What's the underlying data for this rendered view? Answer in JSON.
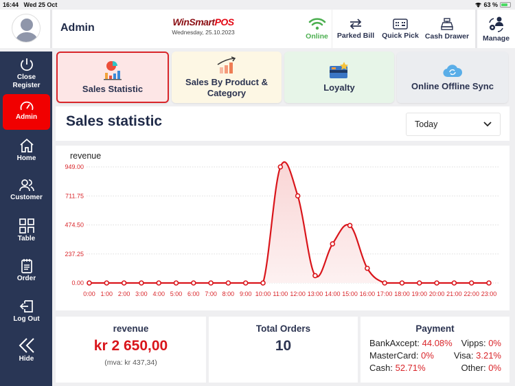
{
  "status_bar": {
    "time": "16:44",
    "date": "Wed 25 Oct",
    "battery": "63 %"
  },
  "header": {
    "user_name": "Admin",
    "logo": {
      "part1": "WinSmart",
      "part2": "POS"
    },
    "date": "Wednesday, 25.10.2023",
    "buttons": {
      "online": "Online",
      "parked_bill": "Parked Bill",
      "quick_pick": "Quick Pick",
      "cash_drawer": "Cash Drawer",
      "manage": "Manage"
    }
  },
  "sidebar": {
    "items": [
      {
        "label": "Close Register",
        "icon": "power-icon"
      },
      {
        "label": "Admin",
        "icon": "speedometer-icon",
        "active": true
      },
      {
        "label": "Home",
        "icon": "home-icon"
      },
      {
        "label": "Customer",
        "icon": "users-icon"
      },
      {
        "label": "Table",
        "icon": "table-icon"
      },
      {
        "label": "Order",
        "icon": "notepad-icon"
      },
      {
        "label": "Log Out",
        "icon": "logout-icon"
      },
      {
        "label": "Hide",
        "icon": "double-chevron-left-icon"
      }
    ]
  },
  "tabs": [
    {
      "label": "Sales Statistic",
      "active": true,
      "bg": "#fde6e6"
    },
    {
      "label": "Sales By Product & Category",
      "bg": "#fdf7e4"
    },
    {
      "label": "Loyalty",
      "bg": "#e7f5e8"
    },
    {
      "label": "Online Offline Sync",
      "bg": "#ebedf0"
    }
  ],
  "main": {
    "title": "Sales statistic",
    "period_select": {
      "value": "Today"
    }
  },
  "chart_data": {
    "type": "line",
    "title": "revenue",
    "xlabel": "",
    "ylabel": "",
    "ylim": [
      0,
      949
    ],
    "y_ticks": [
      "0.00",
      "237.25",
      "474.50",
      "711.75",
      "949.00"
    ],
    "categories": [
      "0:00",
      "1:00",
      "2:00",
      "3:00",
      "4:00",
      "5:00",
      "6:00",
      "7:00",
      "8:00",
      "9:00",
      "10:00",
      "11:00",
      "12:00",
      "13:00",
      "14:00",
      "15:00",
      "16:00",
      "17:00",
      "18:00",
      "19:00",
      "20:00",
      "21:00",
      "22:00",
      "23:00"
    ],
    "values": [
      0,
      0,
      0,
      0,
      0,
      0,
      0,
      0,
      0,
      0,
      0,
      949,
      712,
      60,
      320,
      470,
      120,
      0,
      0,
      0,
      0,
      0,
      0,
      0
    ],
    "color": "#d9151b",
    "grid": true,
    "smooth": true,
    "area_fill": true
  },
  "summary": {
    "revenue": {
      "label": "revenue",
      "value": "kr 2 650,00",
      "vat": "(mva: kr 437,34)"
    },
    "orders": {
      "label": "Total Orders",
      "value": "10"
    },
    "payment": {
      "label": "Payment",
      "items": [
        {
          "name": "BankAxcept:",
          "value": "44.08%"
        },
        {
          "name": "Vipps:",
          "value": "0%"
        },
        {
          "name": "MasterCard:",
          "value": "0%"
        },
        {
          "name": "Visa:",
          "value": "3.21%"
        },
        {
          "name": "Cash:",
          "value": "52.71%"
        },
        {
          "name": "Other:",
          "value": "0%"
        }
      ]
    }
  }
}
